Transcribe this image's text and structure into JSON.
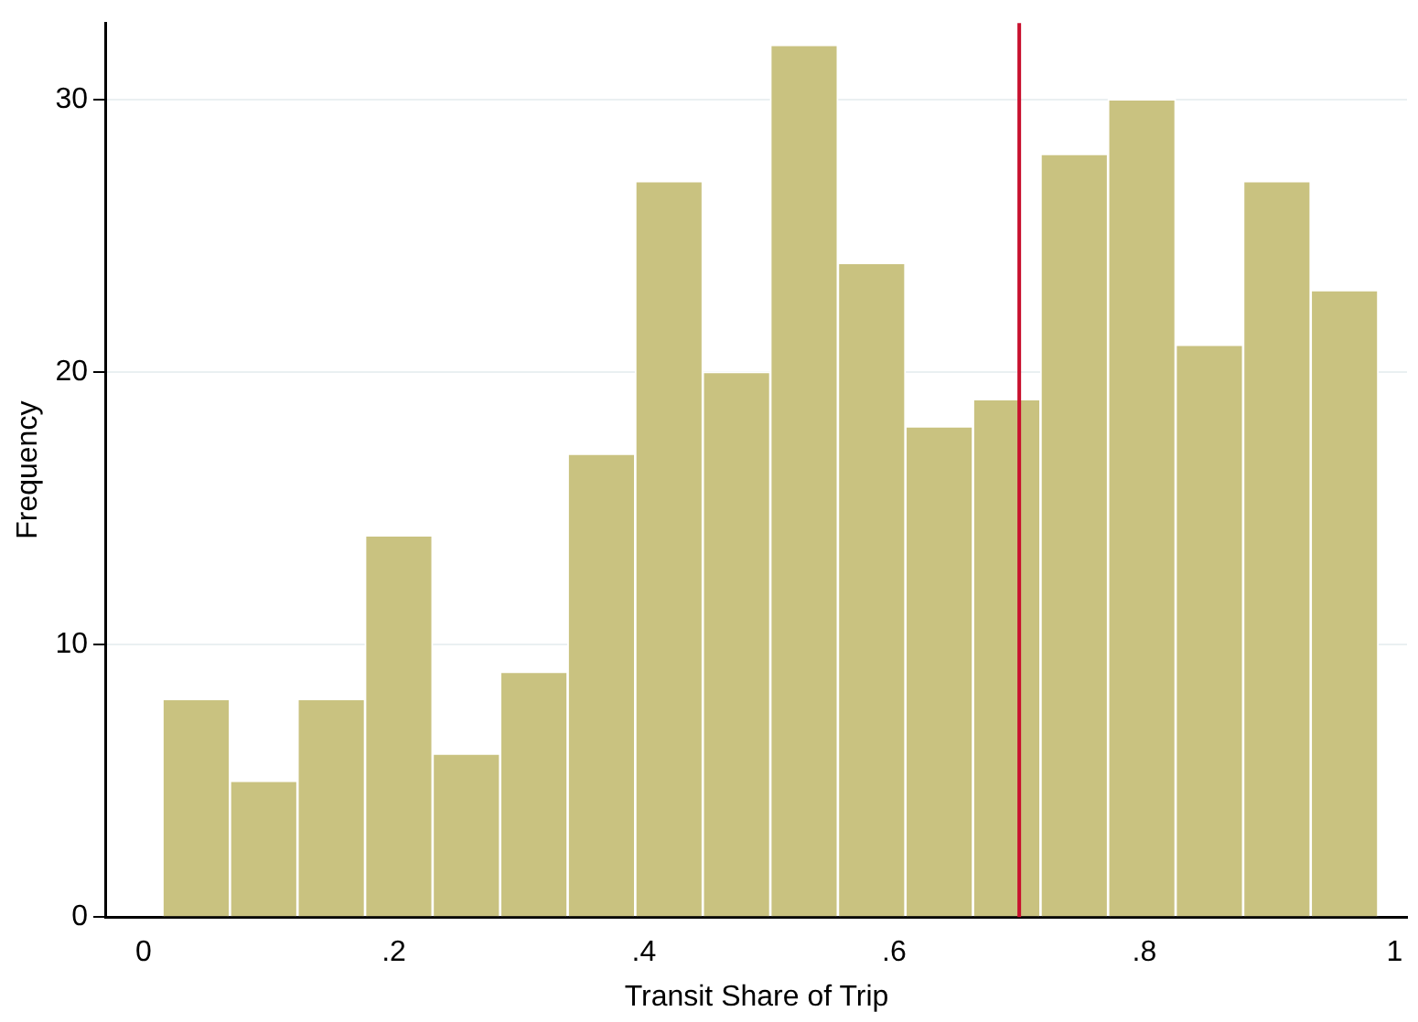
{
  "chart_data": {
    "type": "histogram",
    "xlabel": "Transit Share of Trip",
    "ylabel": "Frequency",
    "bins": [
      0.015,
      0.069,
      0.123,
      0.177,
      0.231,
      0.285,
      0.339,
      0.393,
      0.447,
      0.501,
      0.555,
      0.609,
      0.663,
      0.717,
      0.771,
      0.825,
      0.879,
      0.933,
      0.987
    ],
    "values": [
      8,
      5,
      8,
      14,
      6,
      9,
      17,
      27,
      20,
      32,
      24,
      18,
      19,
      28,
      30,
      21,
      27,
      23
    ],
    "color": "#c9c280",
    "xlim": [
      -0.03,
      1.01
    ],
    "xticks": [
      0,
      {
        "value": 0.2,
        "label": ".2"
      },
      {
        "value": 0.4,
        "label": ".4"
      },
      {
        "value": 0.6,
        "label": ".6"
      },
      {
        "value": 0.8,
        "label": ".8"
      },
      1
    ],
    "ylim": [
      0,
      32.8
    ],
    "yticks": [
      0,
      10,
      20,
      30
    ],
    "grid": "y",
    "ref_lines": [
      {
        "axis": "x",
        "value": 0.7,
        "color": "#c8102e"
      }
    ]
  }
}
